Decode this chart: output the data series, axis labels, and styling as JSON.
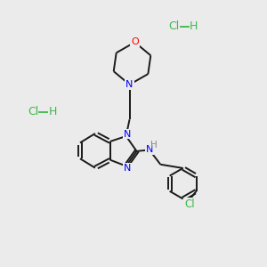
{
  "background_color": "#ebebeb",
  "bond_color": "#1a1a1a",
  "n_color": "#0000ff",
  "o_color": "#ff0000",
  "cl_color": "#3cb84a",
  "h_color": "#888888",
  "hcl_color": "#3cb84a",
  "figsize": [
    3.0,
    3.0
  ],
  "dpi": 100,
  "xlim": [
    0,
    10
  ],
  "ylim": [
    0,
    10
  ]
}
